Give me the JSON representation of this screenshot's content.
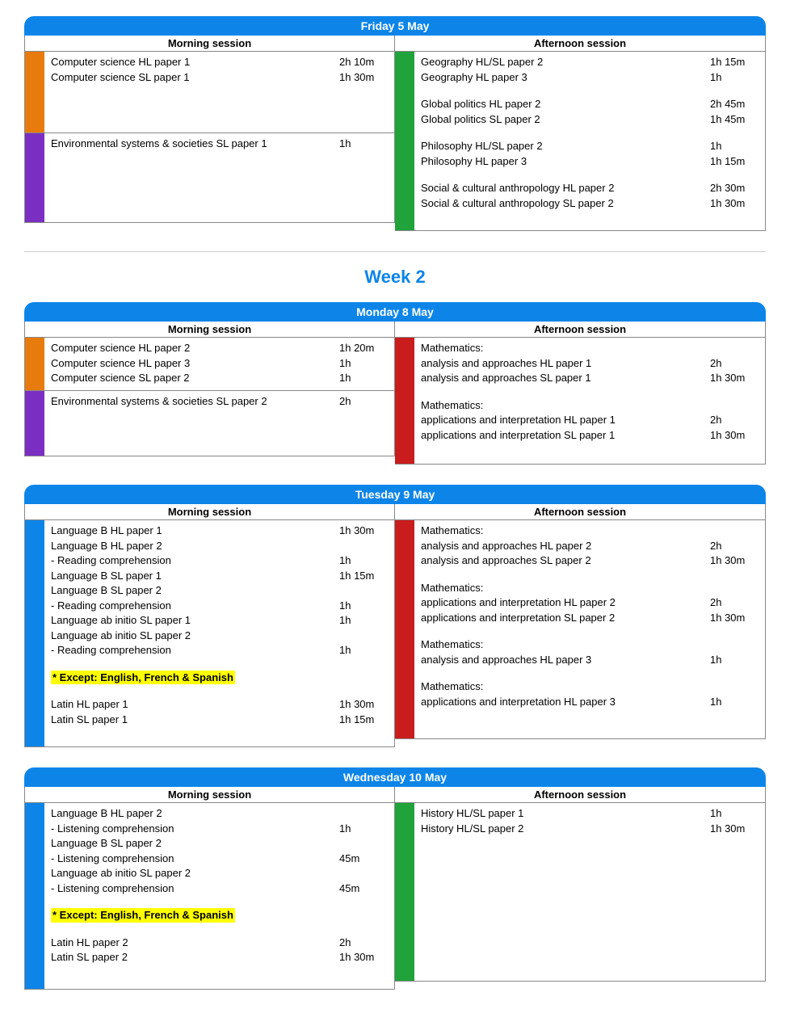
{
  "colors": {
    "header": "#0d85e8",
    "orange": "#e87b0d",
    "purple": "#7b2fc2",
    "green": "#1fa33a",
    "red": "#c91d1d",
    "blue": "#0d85e8",
    "highlight": "#ffff00"
  },
  "labels": {
    "morning": "Morning session",
    "afternoon": "Afternoon session",
    "week2": "Week 2"
  },
  "days": [
    {
      "title": "Friday 5 May",
      "morning": [
        {
          "color": "orange",
          "lines": [
            {
              "name": "Computer science HL paper 1",
              "dur": "2h 10m"
            },
            {
              "name": "Computer science SL paper 1",
              "dur": "1h 30m"
            }
          ],
          "minHeight": 90
        },
        {
          "color": "purple",
          "lines": [
            {
              "name": "Environmental systems & societies SL paper 1",
              "dur": "1h"
            }
          ],
          "minHeight": 100
        }
      ],
      "afternoon": [
        {
          "color": "green",
          "lines": [
            {
              "name": "Geography HL/SL paper 2",
              "dur": "1h 15m"
            },
            {
              "name": "Geography HL paper 3",
              "dur": "1h"
            },
            {
              "gap": true
            },
            {
              "name": "Global politics HL paper 2",
              "dur": "2h 45m"
            },
            {
              "name": "Global politics SL paper 2",
              "dur": "1h 45m"
            },
            {
              "gap": true
            },
            {
              "name": "Philosophy HL/SL paper 2",
              "dur": "1h"
            },
            {
              "name": "Philosophy HL paper 3",
              "dur": "1h 15m"
            },
            {
              "gap": true
            },
            {
              "name": "Social & cultural anthropology HL paper 2",
              "dur": "2h 30m"
            },
            {
              "name": "Social & cultural anthropology SL paper 2",
              "dur": "1h 30m"
            }
          ]
        }
      ]
    },
    {
      "title": "Monday 8 May",
      "weekBreakBefore": true,
      "morning": [
        {
          "color": "orange",
          "lines": [
            {
              "name": "Computer science HL paper 2",
              "dur": "1h 20m"
            },
            {
              "name": "Computer science HL paper 3",
              "dur": "1h"
            },
            {
              "name": "Computer science SL paper 2",
              "dur": "1h"
            }
          ]
        },
        {
          "color": "purple",
          "lines": [
            {
              "name": "Environmental systems & societies SL paper 2",
              "dur": "2h"
            }
          ],
          "minHeight": 70
        }
      ],
      "afternoon": [
        {
          "color": "red",
          "lines": [
            {
              "name": "Mathematics:",
              "dur": ""
            },
            {
              "name": "analysis and approaches HL paper 1",
              "dur": "2h"
            },
            {
              "name": "analysis and approaches SL paper 1",
              "dur": "1h 30m"
            },
            {
              "gap": true
            },
            {
              "name": "Mathematics:",
              "dur": ""
            },
            {
              "name": "applications and interpretation HL paper 1",
              "dur": "2h"
            },
            {
              "name": "applications and interpretation SL paper 1",
              "dur": "1h 30m"
            }
          ]
        }
      ]
    },
    {
      "title": "Tuesday 9 May",
      "morning": [
        {
          "color": "blue",
          "lines": [
            {
              "name": "Language B HL paper 1",
              "dur": "1h 30m"
            },
            {
              "name": "Language B HL paper 2",
              "dur": ""
            },
            {
              "name": "- Reading comprehension",
              "dur": "1h"
            },
            {
              "name": "Language B SL paper 1",
              "dur": "1h 15m"
            },
            {
              "name": "Language B SL paper 2",
              "dur": ""
            },
            {
              "name": "- Reading comprehension",
              "dur": "1h"
            },
            {
              "name": "Language ab initio SL paper 1",
              "dur": "1h"
            },
            {
              "name": "Language ab initio SL paper 2",
              "dur": ""
            },
            {
              "name": "- Reading comprehension",
              "dur": "1h"
            },
            {
              "gap": true
            },
            {
              "highlight": "* Except: English, French & Spanish"
            },
            {
              "gap": true
            },
            {
              "name": "Latin HL paper 1",
              "dur": "1h 30m"
            },
            {
              "name": "Latin SL paper 1",
              "dur": "1h 15m"
            }
          ]
        }
      ],
      "afternoon": [
        {
          "color": "red",
          "lines": [
            {
              "name": "Mathematics:",
              "dur": ""
            },
            {
              "name": "analysis and approaches HL paper 2",
              "dur": "2h"
            },
            {
              "name": "analysis and approaches SL paper 2",
              "dur": "1h 30m"
            },
            {
              "gap": true
            },
            {
              "name": "Mathematics:",
              "dur": ""
            },
            {
              "name": "applications and interpretation HL paper 2",
              "dur": "2h"
            },
            {
              "name": "applications and interpretation SL paper 2",
              "dur": "1h 30m"
            },
            {
              "gap": true
            },
            {
              "name": "Mathematics:",
              "dur": ""
            },
            {
              "name": "analysis and approaches HL paper 3",
              "dur": "1h"
            },
            {
              "gap": true
            },
            {
              "name": "Mathematics:",
              "dur": ""
            },
            {
              "name": "applications and interpretation HL paper 3",
              "dur": "1h"
            }
          ],
          "minHeight": 260
        }
      ]
    },
    {
      "title": "Wednesday 10 May",
      "morning": [
        {
          "color": "blue",
          "lines": [
            {
              "name": "Language B HL paper 2",
              "dur": ""
            },
            {
              "name": "- Listening comprehension",
              "dur": "1h"
            },
            {
              "name": "Language B SL paper 2",
              "dur": ""
            },
            {
              "name": "- Listening comprehension",
              "dur": "45m"
            },
            {
              "name": "Language ab initio SL paper 2",
              "dur": ""
            },
            {
              "name": "- Listening comprehension",
              "dur": "45m"
            },
            {
              "gap": true
            },
            {
              "highlight": "* Except: English, French & Spanish"
            },
            {
              "gap": true
            },
            {
              "name": "Latin HL paper 2",
              "dur": "2h"
            },
            {
              "name": "Latin SL paper 2",
              "dur": "1h 30m"
            }
          ]
        }
      ],
      "afternoon": [
        {
          "color": "green",
          "lines": [
            {
              "name": "History HL/SL paper 1",
              "dur": "1h"
            },
            {
              "name": "History HL/SL paper 2",
              "dur": "1h 30m"
            }
          ],
          "minHeight": 210
        }
      ]
    }
  ]
}
